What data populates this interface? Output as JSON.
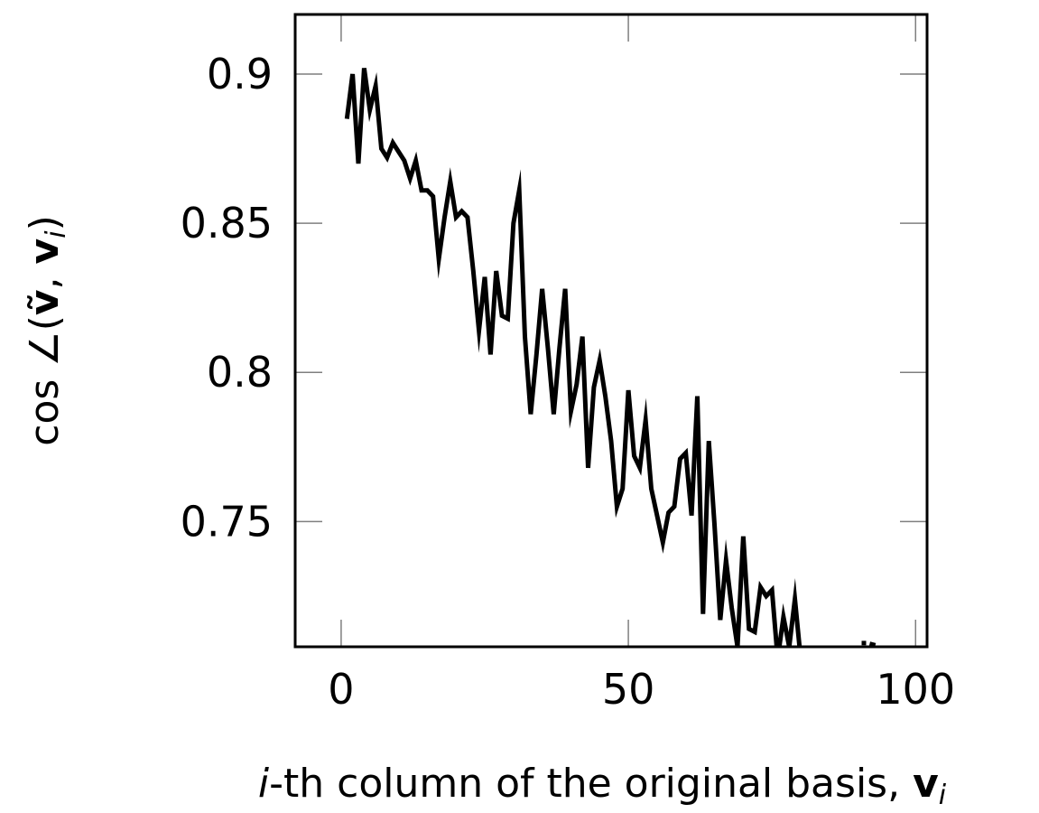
{
  "colors": {
    "line": "#000000",
    "frame": "#000000",
    "tick": "#7f7f7f",
    "background": "#ffffff"
  },
  "chart_data": {
    "type": "line",
    "title": "",
    "xlabel": "i-th column of the original basis, v_i",
    "xlabel_parts": {
      "italic_i": "i",
      "middle": "-th column of the original basis, ",
      "bold_v": "v",
      "sub": "i"
    },
    "ylabel": "cos ∠(ṽ, v_i)",
    "ylabel_parts": {
      "prefix": "cos ∠(",
      "v_tilde": "ṽ",
      "comma": ", ",
      "bold_v": "v",
      "sub": "i",
      "suffix": ")"
    },
    "xlim": [
      -8,
      102
    ],
    "ylim": [
      0.708,
      0.92
    ],
    "xticks": [
      0,
      50,
      100
    ],
    "xtick_labels": [
      "0",
      "50",
      "100"
    ],
    "yticks": [
      0.75,
      0.8,
      0.85,
      0.9
    ],
    "ytick_labels": [
      "0.75",
      "0.8",
      "0.85",
      "0.9"
    ],
    "grid": false,
    "legend": "none",
    "series": [
      {
        "x": [
          1,
          2,
          3,
          4,
          5,
          6,
          7,
          8,
          9,
          10,
          11,
          12,
          13,
          14,
          15,
          16,
          17,
          18,
          19,
          20,
          21,
          22,
          23,
          24,
          25,
          26,
          27,
          28,
          29,
          30,
          31,
          32,
          33,
          34,
          35,
          36,
          37,
          38,
          39,
          40,
          41,
          42,
          43,
          44,
          45,
          46,
          47,
          48,
          49,
          50,
          51,
          52,
          53,
          54,
          55,
          56,
          57,
          58,
          59,
          60,
          61,
          62,
          63,
          64,
          65,
          66,
          67,
          68,
          69,
          70,
          71,
          72,
          73,
          74,
          75,
          76,
          77,
          78,
          79,
          80
        ],
        "values": [
          0.885,
          0.9,
          0.87,
          0.902,
          0.888,
          0.896,
          0.875,
          0.872,
          0.877,
          0.874,
          0.871,
          0.865,
          0.871,
          0.861,
          0.861,
          0.859,
          0.838,
          0.852,
          0.864,
          0.852,
          0.854,
          0.852,
          0.834,
          0.814,
          0.832,
          0.806,
          0.834,
          0.819,
          0.818,
          0.85,
          0.861,
          0.812,
          0.786,
          0.806,
          0.828,
          0.808,
          0.786,
          0.808,
          0.828,
          0.787,
          0.796,
          0.812,
          0.768,
          0.795,
          0.804,
          0.792,
          0.777,
          0.755,
          0.761,
          0.794,
          0.772,
          0.768,
          0.784,
          0.761,
          0.752,
          0.743,
          0.753,
          0.755,
          0.771,
          0.773,
          0.752,
          0.792,
          0.719,
          0.777,
          0.749,
          0.717,
          0.737,
          0.721,
          0.708,
          0.745,
          0.714,
          0.713,
          0.728,
          0.725,
          0.727,
          0.704,
          0.718,
          0.708,
          0.724,
          0.704
        ],
        "extra_segments": [
          {
            "x": [
              91,
              91
            ],
            "values": [
              0.7085,
              0.71
            ]
          },
          {
            "x": [
              92,
              93
            ],
            "values": [
              0.709,
              0.7085
            ]
          }
        ]
      }
    ]
  }
}
